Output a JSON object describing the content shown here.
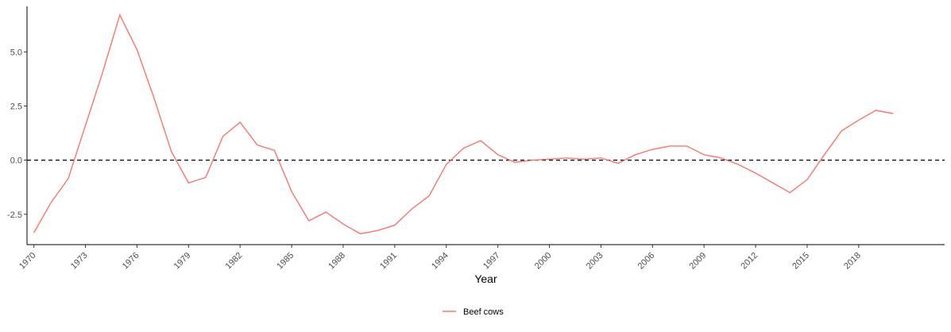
{
  "chart_data": {
    "type": "line",
    "title": "",
    "xlabel": "Year",
    "ylabel": "",
    "x": [
      1970,
      1971,
      1972,
      1973,
      1974,
      1975,
      1976,
      1977,
      1978,
      1979,
      1980,
      1981,
      1982,
      1983,
      1984,
      1985,
      1986,
      1987,
      1988,
      1989,
      1990,
      1991,
      1992,
      1993,
      1994,
      1995,
      1996,
      1997,
      1998,
      1999,
      2000,
      2001,
      2002,
      2003,
      2004,
      2005,
      2006,
      2007,
      2008,
      2009,
      2010,
      2011,
      2012,
      2013,
      2014,
      2015,
      2016,
      2017,
      2018,
      2019,
      2020
    ],
    "series": [
      {
        "name": "Beef cows",
        "color": "#F8766D",
        "values": [
          -3.35,
          -1.95,
          -0.85,
          1.6,
          4.05,
          6.7,
          5.1,
          2.85,
          0.4,
          -1.05,
          -0.8,
          1.1,
          1.75,
          0.7,
          0.45,
          -1.45,
          -2.8,
          -2.4,
          -2.95,
          -3.4,
          -3.25,
          -3.0,
          -2.25,
          -1.65,
          -0.2,
          0.55,
          0.9,
          0.25,
          -0.1,
          0.0,
          0.05,
          0.1,
          0.05,
          0.1,
          -0.15,
          0.25,
          0.5,
          0.65,
          0.65,
          0.25,
          0.1,
          -0.2,
          -0.6,
          -1.05,
          -1.5,
          -0.9,
          0.25,
          1.35,
          1.85,
          2.3,
          2.15
        ]
      }
    ],
    "xticks": [
      1970,
      1973,
      1976,
      1979,
      1982,
      1985,
      1988,
      1991,
      1994,
      1997,
      2000,
      2003,
      2006,
      2009,
      2012,
      2015,
      2018
    ],
    "xlim": [
      1969.6,
      2023
    ],
    "yticks": [
      -2.5,
      0.0,
      2.5,
      5.0
    ],
    "ytick_labels": [
      "-2.5",
      "0.0",
      "2.5",
      "5.0"
    ],
    "ylim": [
      -3.9,
      7.1
    ],
    "reference_line": {
      "y": 0,
      "style": "dashed",
      "color": "#000000"
    },
    "grid": false,
    "legend": {
      "position": "bottom",
      "entries": [
        "Beef cows"
      ]
    }
  }
}
